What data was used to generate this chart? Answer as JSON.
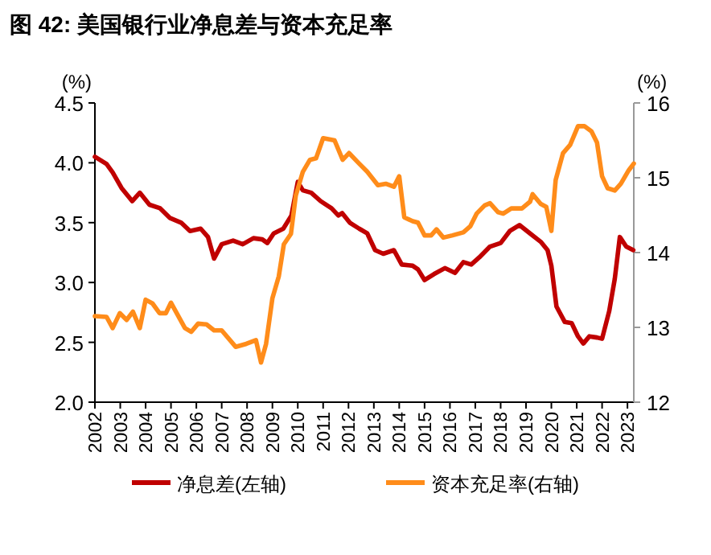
{
  "chart_data": {
    "type": "line",
    "title": "图 42: 美国银行业净息差与资本充足率",
    "ylabel": "(%)",
    "y2label": "(%)",
    "xlim": [
      2002,
      2023.25
    ],
    "xticks": [
      2002,
      2003,
      2004,
      2005,
      2006,
      2007,
      2008,
      2009,
      2010,
      2011,
      2012,
      2013,
      2014,
      2015,
      2016,
      2017,
      2018,
      2019,
      2020,
      2021,
      2022,
      2023
    ],
    "ylim": [
      2.0,
      4.5
    ],
    "yticks": [
      {
        "value": 2.0,
        "label": "2.0"
      },
      {
        "value": 2.5,
        "label": "2.5"
      },
      {
        "value": 3.0,
        "label": "3.0"
      },
      {
        "value": 3.5,
        "label": "3.5"
      },
      {
        "value": 4.0,
        "label": "4.0"
      },
      {
        "value": 4.5,
        "label": "4.5"
      }
    ],
    "y2lim": [
      12,
      16
    ],
    "y2ticks": [
      12,
      13,
      14,
      15,
      16
    ],
    "grid": false,
    "legend": "bottom",
    "marker": "none",
    "line_style": "solid",
    "series": [
      {
        "name": "净息差(左轴)",
        "color": "#c00000",
        "x": [
          2002,
          2002.46,
          2002.7,
          2003.05,
          2003.47,
          2003.77,
          2004.15,
          2004.57,
          2004.95,
          2005.4,
          2005.75,
          2006.17,
          2006.46,
          2006.7,
          2007.0,
          2007.45,
          2007.83,
          2008.25,
          2008.6,
          2008.8,
          2009.05,
          2009.43,
          2009.75,
          2010.0,
          2010.2,
          2010.53,
          2010.9,
          2011.33,
          2011.6,
          2011.75,
          2012.05,
          2012.42,
          2012.74,
          2013.05,
          2013.37,
          2013.79,
          2014.1,
          2014.53,
          2014.74,
          2015,
          2015.37,
          2015.8,
          2016.2,
          2016.53,
          2016.84,
          2017.16,
          2017.58,
          2018,
          2018.36,
          2018.74,
          2019.16,
          2019.58,
          2019.85,
          2020,
          2020.2,
          2020.53,
          2020.8,
          2021.05,
          2021.26,
          2021.5,
          2021.8,
          2022,
          2022.28,
          2022.5,
          2022.7,
          2022.95,
          2023.23
        ],
        "values": [
          4.05,
          3.99,
          3.92,
          3.79,
          3.68,
          3.75,
          3.65,
          3.62,
          3.54,
          3.5,
          3.43,
          3.45,
          3.38,
          3.2,
          3.32,
          3.35,
          3.32,
          3.37,
          3.36,
          3.33,
          3.41,
          3.45,
          3.56,
          3.84,
          3.77,
          3.75,
          3.68,
          3.62,
          3.56,
          3.58,
          3.5,
          3.45,
          3.41,
          3.27,
          3.24,
          3.27,
          3.15,
          3.14,
          3.11,
          3.02,
          3.07,
          3.12,
          3.08,
          3.17,
          3.15,
          3.21,
          3.3,
          3.33,
          3.43,
          3.48,
          3.41,
          3.34,
          3.27,
          3.14,
          2.8,
          2.67,
          2.66,
          2.55,
          2.49,
          2.55,
          2.54,
          2.53,
          2.76,
          3.03,
          3.38,
          3.3,
          3.27
        ]
      },
      {
        "name": "资本充足率(右轴)",
        "color": "#ff8c1a",
        "axis": "y2",
        "x": [
          2002,
          2002.46,
          2002.7,
          2002.98,
          2003.25,
          2003.5,
          2003.77,
          2004,
          2004.27,
          2004.55,
          2004.8,
          2005,
          2005.55,
          2005.8,
          2006.07,
          2006.4,
          2006.7,
          2007.0,
          2007.55,
          2007.97,
          2008.35,
          2008.55,
          2008.75,
          2009,
          2009.25,
          2009.45,
          2009.73,
          2009.92,
          2010.2,
          2010.48,
          2010.72,
          2011,
          2011.45,
          2011.77,
          2012.02,
          2012.42,
          2012.74,
          2013.16,
          2013.47,
          2013.79,
          2014,
          2014.2,
          2014.53,
          2014.74,
          2015,
          2015.26,
          2015.47,
          2015.74,
          2016.1,
          2016.53,
          2016.8,
          2017.05,
          2017.37,
          2017.58,
          2017.9,
          2018.1,
          2018.42,
          2018.84,
          2019.16,
          2019.26,
          2019.58,
          2019.8,
          2020,
          2020.17,
          2020.46,
          2020.74,
          2021.05,
          2021.3,
          2021.58,
          2021.8,
          2022,
          2022.22,
          2022.5,
          2022.74,
          2023.05,
          2023.25
        ],
        "values": [
          13.15,
          13.14,
          12.99,
          13.19,
          13.1,
          13.21,
          12.99,
          13.37,
          13.32,
          13.19,
          13.19,
          13.33,
          12.99,
          12.94,
          13.05,
          13.04,
          12.96,
          12.96,
          12.74,
          12.78,
          12.83,
          12.53,
          12.78,
          13.39,
          13.68,
          14.11,
          14.25,
          14.76,
          15.08,
          15.24,
          15.26,
          15.53,
          15.5,
          15.24,
          15.33,
          15.19,
          15.08,
          14.9,
          14.92,
          14.88,
          15.02,
          14.47,
          14.42,
          14.4,
          14.23,
          14.23,
          14.31,
          14.2,
          14.23,
          14.27,
          14.35,
          14.52,
          14.63,
          14.66,
          14.54,
          14.52,
          14.59,
          14.59,
          14.68,
          14.78,
          14.65,
          14.61,
          14.29,
          14.97,
          15.33,
          15.44,
          15.69,
          15.69,
          15.62,
          15.47,
          15.02,
          14.86,
          14.83,
          14.92,
          15.1,
          15.19
        ]
      }
    ]
  }
}
